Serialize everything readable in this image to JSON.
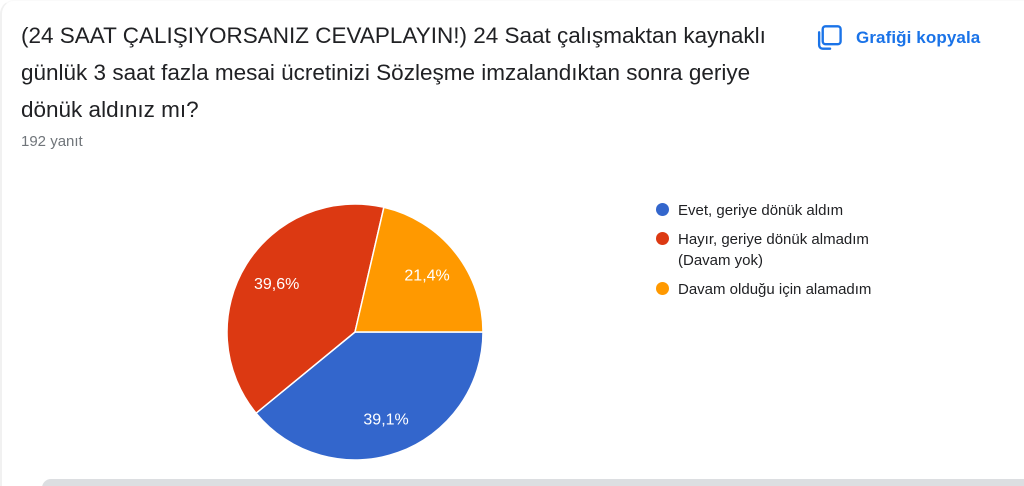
{
  "header": {
    "title_lines": [
      "(24 SAAT ÇALIŞIYORSANIZ CEVAPLAYIN!) 24 Saat çalışmaktan kaynaklı",
      "günlük 3 saat fazla mesai ücretinizi Sözleşme imzalandıktan sonra geriye",
      "dönük aldınız mı?"
    ],
    "responses": "192 yanıt",
    "copy_button": "Grafiği kopyala",
    "link_color": "#1a73e8"
  },
  "chart_data": {
    "type": "pie",
    "title": "(24 SAAT ÇALIŞIYORSANIZ CEVAPLAYIN!) 24 Saat çalışmaktan kaynaklı günlük 3 saat fazla mesai ücretinizi Sözleşme imzalandıktan sonra geriye dönük aldınız mı?",
    "subtitle": "192 yanıt",
    "total_responses_label": "192 yanıt",
    "categories": [
      "Evet, geriye dönük aldım",
      "Hayır, geriye dönük almadım (Davam yok)",
      "Davam olduğu için alamadım"
    ],
    "values_percent": [
      39.1,
      39.6,
      21.4
    ],
    "value_labels": [
      "39,1%",
      "39,6%",
      "21,4%"
    ],
    "colors": [
      "#3366cc",
      "#dc3912",
      "#ff9900"
    ],
    "start_angle_from_north_deg": 90,
    "direction": "clockwise",
    "legend_position": "right",
    "label_radius_ratio": 0.72,
    "slice_border_color": "#ffffff"
  }
}
